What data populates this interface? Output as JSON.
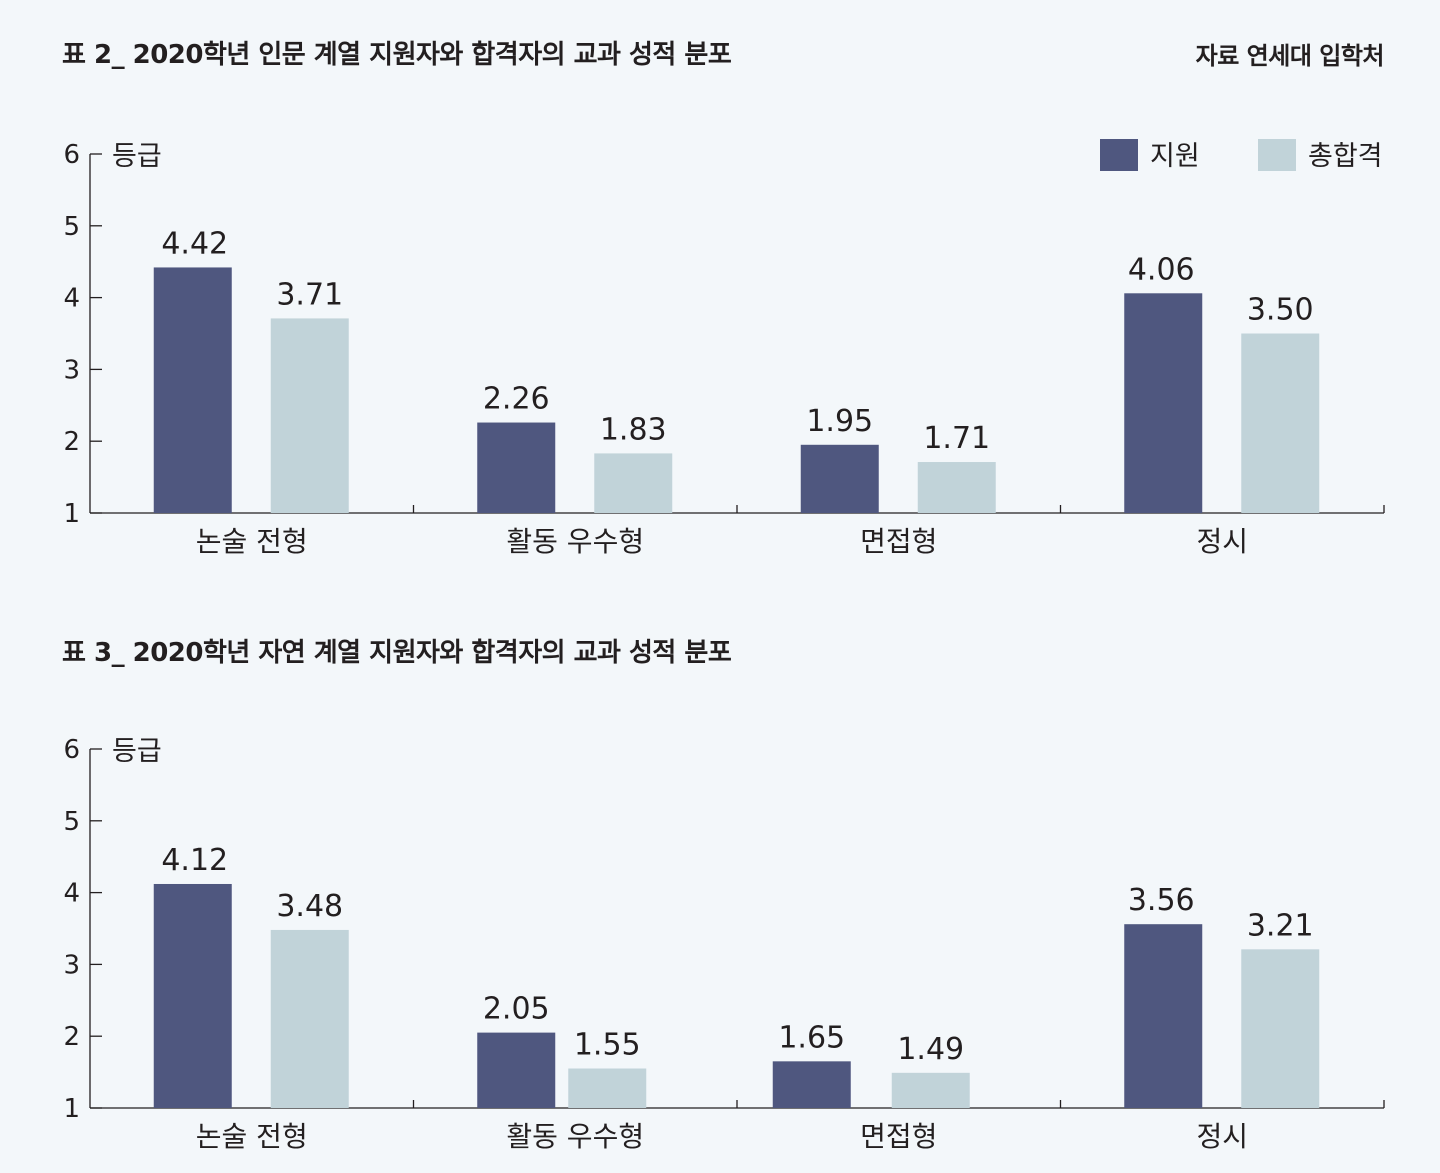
{
  "source_label": "자료 연세대 입학처",
  "colors": {
    "applicant": "#4f577f",
    "admitted": "#c1d3d9",
    "background": "#f3f7fa",
    "text": "#231f20"
  },
  "chart_data": [
    {
      "type": "bar",
      "title": "표 2_ 2020학년 인문 계열 지원자와 합격자의 교과 성적 분포",
      "ylabel": "등급",
      "xlabel": "",
      "ylim": [
        1,
        6
      ],
      "yticks": [
        "1",
        "2",
        "3",
        "4",
        "5",
        "6"
      ],
      "categories": [
        "논술 전형",
        "활동 우수형",
        "면접형",
        "정시"
      ],
      "series": [
        {
          "name": "지원",
          "values": [
            4.42,
            2.26,
            1.95,
            4.06
          ],
          "labels": [
            "4.42",
            "2.26",
            "1.95",
            "4.06"
          ]
        },
        {
          "name": "총합격",
          "values": [
            3.71,
            1.83,
            1.71,
            3.5
          ],
          "labels": [
            "3.71",
            "1.83",
            "1.71",
            "3.50"
          ]
        }
      ],
      "legend": "top-right"
    },
    {
      "type": "bar",
      "title": "표 3_ 2020학년 자연 계열 지원자와 합격자의 교과 성적 분포",
      "ylabel": "등급",
      "xlabel": "",
      "ylim": [
        1,
        6
      ],
      "yticks": [
        "1",
        "2",
        "3",
        "4",
        "5",
        "6"
      ],
      "categories": [
        "논술 전형",
        "활동 우수형",
        "면접형",
        "정시"
      ],
      "series": [
        {
          "name": "지원",
          "values": [
            4.12,
            2.05,
            1.65,
            3.56
          ],
          "labels": [
            "4.12",
            "2.05",
            "1.65",
            "3.56"
          ]
        },
        {
          "name": "총합격",
          "values": [
            3.48,
            1.55,
            1.49,
            3.21
          ],
          "labels": [
            "3.48",
            "1.55",
            "1.49",
            "3.21"
          ]
        }
      ]
    }
  ]
}
